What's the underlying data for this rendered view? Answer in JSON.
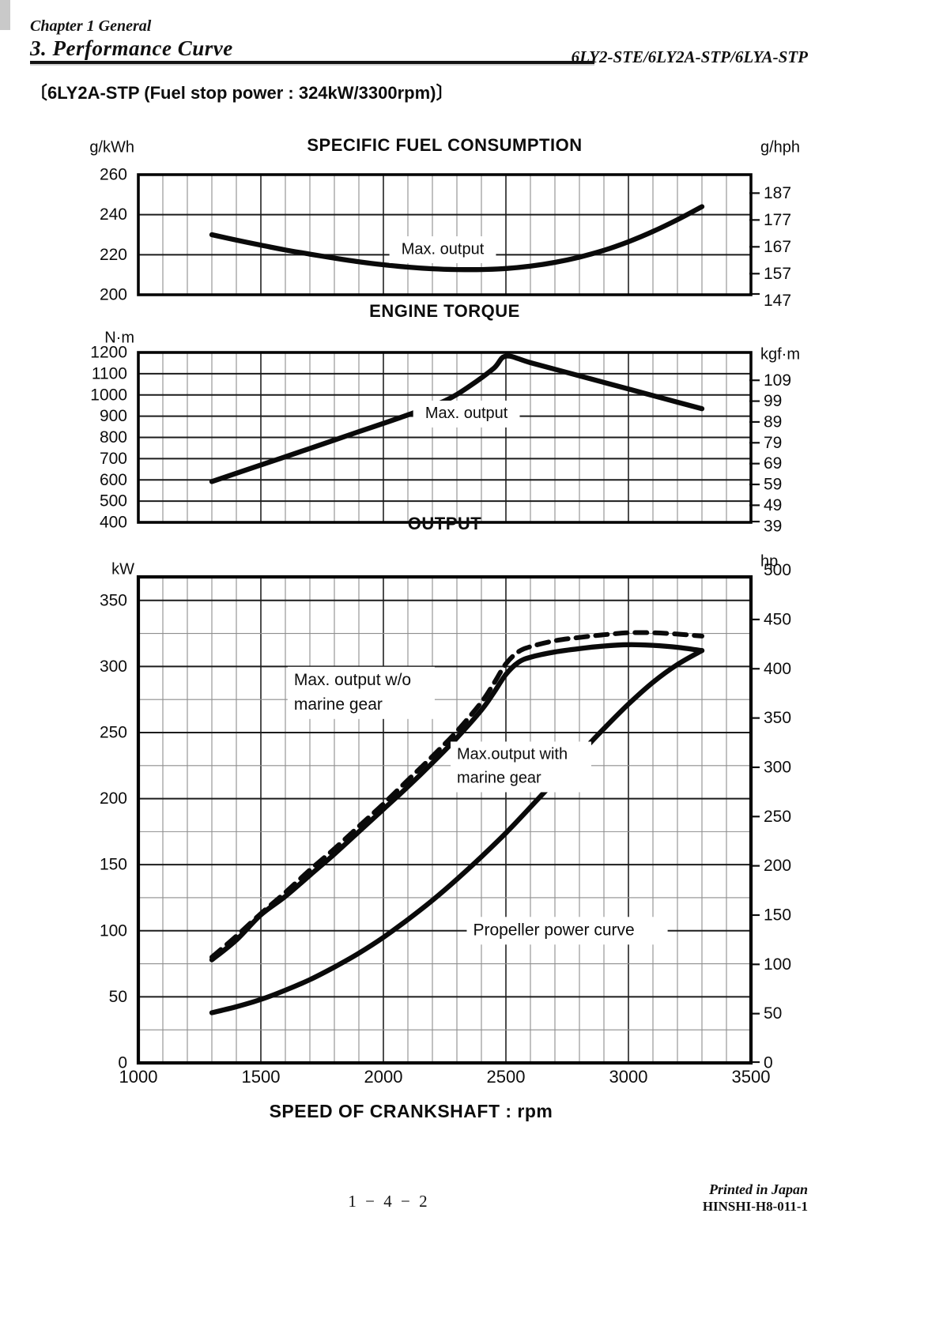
{
  "header": {
    "chapter": "Chapter 1 General",
    "section": "3. Performance  Curve",
    "models": "6LY2-STE/6LY2A-STP/6LYA-STP",
    "subtitle": "〔6LY2A-STP (Fuel stop power : 324kW/3300rpm)〕"
  },
  "footer": {
    "page_number": "1 − 4 − 2",
    "printed": "Printed in Japan",
    "code": "HINSHI-H8-011-1"
  },
  "x_axis": {
    "title": "SPEED OF CRANKSHAFT :  rpm",
    "min": 1000,
    "max": 3500,
    "minor_step": 100,
    "major_step": 500,
    "tick_labels": [
      "1000",
      "1500",
      "2000",
      "2500",
      "3000",
      "3500"
    ]
  },
  "chart_data": [
    {
      "type": "line",
      "title": "SPECIFIC FUEL CONSUMPTION",
      "left_unit": "g/kWh",
      "right_unit": "g/hph",
      "xlabel": "SPEED OF CRANKSHAFT : rpm",
      "y_min": 200,
      "y_max": 260,
      "left_ticks": [
        260,
        240,
        220,
        200
      ],
      "major_grid_values": [
        240,
        220
      ],
      "minor_grid_values": [],
      "right_ticks": [
        187,
        177,
        167,
        157,
        147
      ],
      "right_scale_factor": 1.34102,
      "series": [
        {
          "name": "Max. output",
          "style": "solid",
          "points": [
            [
              1300,
              230
            ],
            [
              1400,
              227.3
            ],
            [
              1500,
              224.8
            ],
            [
              1600,
              222.4
            ],
            [
              1700,
              220.3
            ],
            [
              1800,
              218.3
            ],
            [
              1900,
              216.5
            ],
            [
              2000,
              215
            ],
            [
              2100,
              213.8
            ],
            [
              2200,
              213
            ],
            [
              2300,
              212.6
            ],
            [
              2400,
              212.6
            ],
            [
              2500,
              213.1
            ],
            [
              2600,
              214.3
            ],
            [
              2700,
              216.2
            ],
            [
              2800,
              218.8
            ],
            [
              2900,
              222.2
            ],
            [
              3000,
              226.5
            ],
            [
              3100,
              231.6
            ],
            [
              3200,
              237.5
            ],
            [
              3300,
              244
            ]
          ]
        }
      ],
      "annotations": [
        {
          "lines": [
            "Max. output"
          ],
          "x": 2242,
          "y": 222.5,
          "anchor": "middle",
          "font": 20
        }
      ]
    },
    {
      "type": "line",
      "title": "ENGINE TORQUE",
      "left_unit": "N·m",
      "right_unit": "kgf·m",
      "xlabel": "SPEED OF CRANKSHAFT : rpm",
      "y_min": 400,
      "y_max": 1200,
      "left_ticks": [
        1200,
        1100,
        1000,
        900,
        800,
        700,
        600,
        500,
        400
      ],
      "major_grid_values": [
        1100,
        1000,
        900,
        800,
        700,
        600,
        500
      ],
      "minor_grid_values": [],
      "right_ticks": [
        109,
        99,
        89,
        79,
        69,
        59,
        49,
        39
      ],
      "right_scale_factor": 9.80665,
      "series": [
        {
          "name": "Max. output",
          "style": "solid",
          "points": [
            [
              1300,
              592
            ],
            [
              1500,
              670
            ],
            [
              1700,
              748
            ],
            [
              1900,
              827
            ],
            [
              2100,
              906
            ],
            [
              2250,
              972
            ],
            [
              2350,
              1040
            ],
            [
              2450,
              1125
            ],
            [
              2500,
              1183
            ],
            [
              2600,
              1152
            ],
            [
              2800,
              1090
            ],
            [
              3000,
              1028
            ],
            [
              3200,
              966
            ],
            [
              3300,
              935
            ]
          ]
        }
      ],
      "annotations": [
        {
          "lines": [
            "Max. output"
          ],
          "x": 2339,
          "y": 910,
          "anchor": "middle",
          "font": 20
        }
      ]
    },
    {
      "type": "line",
      "title": "OUTPUT",
      "left_unit": "kW",
      "right_unit": "hp",
      "xlabel": "SPEED OF CRANKSHAFT : rpm",
      "y_min": 0,
      "y_max": 367.8,
      "left_ticks": [
        350,
        300,
        250,
        200,
        150,
        100,
        50,
        0
      ],
      "major_grid_values": [
        350,
        300,
        250,
        200,
        150,
        100,
        50
      ],
      "minor_grid_values": [
        325,
        275,
        225,
        175,
        125,
        75,
        25
      ],
      "right_ticks": [
        500,
        450,
        400,
        350,
        300,
        250,
        200,
        150,
        100,
        50,
        0
      ],
      "right_scale_factor": 0.7457,
      "series": [
        {
          "name": "Max. output w/o marine gear",
          "style": "dashed",
          "points": [
            [
              1300,
              80
            ],
            [
              1400,
              96
            ],
            [
              1500,
              113
            ],
            [
              1600,
              129
            ],
            [
              1700,
              146
            ],
            [
              1800,
              162
            ],
            [
              1900,
              179
            ],
            [
              2000,
              196
            ],
            [
              2100,
              214
            ],
            [
              2200,
              232
            ],
            [
              2300,
              251
            ],
            [
              2400,
              273
            ],
            [
              2450,
              287
            ],
            [
              2500,
              302
            ],
            [
              2550,
              311
            ],
            [
              2600,
              315
            ],
            [
              2700,
              319.5
            ],
            [
              2800,
              322
            ],
            [
              2900,
              324
            ],
            [
              3000,
              325.5
            ],
            [
              3100,
              325.5
            ],
            [
              3200,
              324.5
            ],
            [
              3300,
              323
            ]
          ]
        },
        {
          "name": "Max. output with marine gear",
          "style": "solid",
          "points": [
            [
              1300,
              78
            ],
            [
              1400,
              93
            ],
            [
              1500,
              112
            ],
            [
              1600,
              126
            ],
            [
              1700,
              142
            ],
            [
              1800,
              158
            ],
            [
              1900,
              175
            ],
            [
              2000,
              192
            ],
            [
              2100,
              209
            ],
            [
              2200,
              227
            ],
            [
              2300,
              246
            ],
            [
              2400,
              267
            ],
            [
              2450,
              280
            ],
            [
              2500,
              294
            ],
            [
              2550,
              303
            ],
            [
              2600,
              307
            ],
            [
              2700,
              311
            ],
            [
              2800,
              313.5
            ],
            [
              2900,
              315.5
            ],
            [
              3000,
              316.5
            ],
            [
              3100,
              316
            ],
            [
              3200,
              314.5
            ],
            [
              3300,
              312
            ]
          ]
        },
        {
          "name": "Propeller power curve",
          "style": "solid",
          "points": [
            [
              1300,
              38
            ],
            [
              1400,
              42.5
            ],
            [
              1500,
              48
            ],
            [
              1600,
              55
            ],
            [
              1700,
              63
            ],
            [
              1800,
              72.5
            ],
            [
              1900,
              83
            ],
            [
              2000,
              95
            ],
            [
              2100,
              108.5
            ],
            [
              2200,
              123
            ],
            [
              2300,
              139
            ],
            [
              2400,
              156
            ],
            [
              2500,
              174
            ],
            [
              2600,
              193.5
            ],
            [
              2700,
              213.5
            ],
            [
              2800,
              233.5
            ],
            [
              2900,
              253
            ],
            [
              3000,
              271.5
            ],
            [
              3100,
              288
            ],
            [
              3200,
              301.5
            ],
            [
              3300,
              312
            ]
          ]
        }
      ],
      "annotations": [
        {
          "lines": [
            "Max. output w/o",
            "marine gear"
          ],
          "x": 1635,
          "y": 280,
          "anchor": "start",
          "font": 21
        },
        {
          "lines": [
            "Max.output with",
            "marine gear"
          ],
          "x": 2300,
          "y": 224,
          "anchor": "start",
          "font": 20
        },
        {
          "lines": [
            "Propeller power curve"
          ],
          "x": 2366,
          "y": 100,
          "anchor": "start",
          "font": 21
        }
      ]
    }
  ]
}
